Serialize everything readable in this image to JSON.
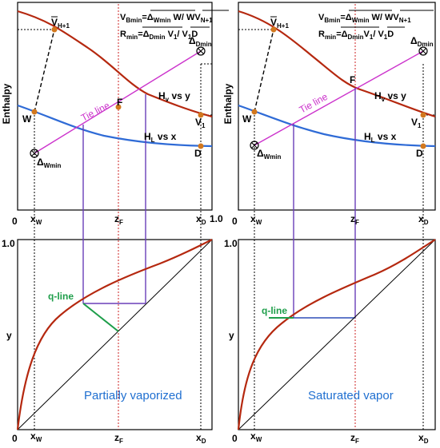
{
  "colors": {
    "vapor_curve": "#b5280f",
    "liquid_curve": "#2f6bd6",
    "tie_line": "#cc33cc",
    "verticals": "#6a3fb8",
    "q_line": "#1e9e4a",
    "feed_line": "#cc2222",
    "point": "#d2781e",
    "caption": "#1f6fd0"
  },
  "left": {
    "eq_v": {
      "main": "V",
      "sub": "Bmin",
      "rest": "=",
      "a1": "Δ",
      "a1sub": "Wmin",
      "a2": " W",
      "slash": "/ ",
      "b": "WV",
      "bsub": "N+1"
    },
    "eq_r": {
      "main": "R",
      "sub": "min",
      "rest": "=",
      "a1": "Δ",
      "a1sub": "Dmin",
      "a2": " V",
      "a2sub": "1",
      "slash": "/ ",
      "b": "V",
      "bsub": "1",
      "b2": "D"
    },
    "caption": "Partially vaporized",
    "q_line_label": "q-line"
  },
  "right": {
    "eq_v": {
      "main": "V",
      "sub": "Bmin",
      "rest": "=",
      "a1": "Δ",
      "a1sub": "Wmin",
      "a2": " W",
      "slash": "/ ",
      "b": "WV",
      "bsub": "N+1"
    },
    "eq_r": {
      "main": "R",
      "sub": "min",
      "rest": "=",
      "a1": "Δ",
      "a1sub": "Dmin",
      "a2": "V",
      "a2sub": "1",
      "slash": "/ ",
      "b": "V",
      "bsub": "1",
      "b2": "D"
    },
    "caption": "Saturated vapor",
    "q_line_label": "q-line"
  },
  "labels": {
    "enthalpy": "Enthalpy",
    "y_axis": "y",
    "vbar": "V",
    "vbar_sub": "H+1",
    "delta_dmin": "Δ",
    "delta_dmin_sub": "Dmin",
    "delta_wmin": "Δ",
    "delta_wmin_sub": "Wmin",
    "W": "W",
    "F": "F",
    "V1": "V",
    "V1_sub": "1",
    "D": "D",
    "tie_line": "Tie line",
    "hv": "H",
    "hv_sub": "v",
    "hv_rest": " vs y",
    "hl": "H",
    "hl_sub": "L",
    "hl_rest": " vs x",
    "zero": "0",
    "one": "1.0",
    "xw": "x",
    "xw_sub": "W",
    "zf": "z",
    "zf_sub": "F",
    "xd": "x",
    "xd_sub": "D",
    "xd_one": "1.0"
  }
}
